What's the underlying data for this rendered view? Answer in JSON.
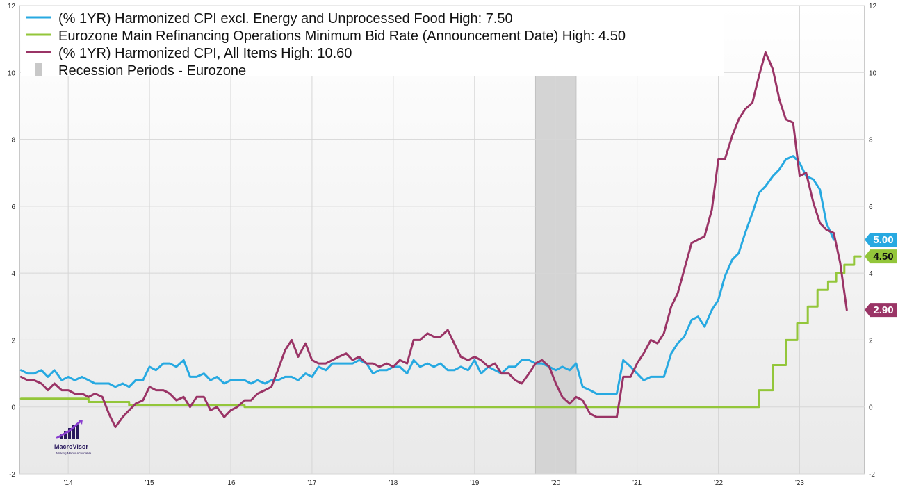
{
  "chart_data": {
    "type": "line",
    "title": "",
    "ylim": [
      -2,
      12
    ],
    "y_ticks": [
      -2,
      0,
      2,
      4,
      6,
      8,
      10,
      12
    ],
    "x_range": [
      2013.4,
      2023.8
    ],
    "x_ticks": [
      {
        "label": "'14",
        "x": 2014.0
      },
      {
        "label": "'15",
        "x": 2015.0
      },
      {
        "label": "'16",
        "x": 2016.0
      },
      {
        "label": "'17",
        "x": 2017.0
      },
      {
        "label": "'18",
        "x": 2018.0
      },
      {
        "label": "'19",
        "x": 2019.0
      },
      {
        "label": "'20",
        "x": 2020.0
      },
      {
        "label": "'21",
        "x": 2021.0
      },
      {
        "label": "'22",
        "x": 2022.0
      },
      {
        "label": "'23",
        "x": 2023.0
      }
    ],
    "recession_periods": [
      {
        "start": 2019.75,
        "end": 2020.25
      }
    ],
    "legend": [
      {
        "text": "(% 1YR) Harmonized CPI excl. Energy and Unprocessed Food   High: 7.50",
        "type": "line",
        "color": "#27a9e1"
      },
      {
        "text": "Eurozone Main Refinancing Operations Minimum Bid Rate (Announcement Date)   High: 4.50",
        "type": "line",
        "color": "#93c63a"
      },
      {
        "text": "(% 1YR) Harmonized CPI, All Items   High: 10.60",
        "type": "line",
        "color": "#9a3466"
      },
      {
        "text": "Recession Periods - Eurozone",
        "type": "box",
        "color": "#c8c8c8"
      }
    ],
    "series": [
      {
        "name": "(% 1YR) Harmonized CPI excl. Energy and Unprocessed Food",
        "color": "#27a9e1",
        "end_label": "5.00",
        "step": false,
        "points": [
          [
            2013.42,
            1.1
          ],
          [
            2013.5,
            1.0
          ],
          [
            2013.58,
            1.0
          ],
          [
            2013.67,
            1.1
          ],
          [
            2013.75,
            0.9
          ],
          [
            2013.83,
            1.1
          ],
          [
            2013.92,
            0.8
          ],
          [
            2014.0,
            0.9
          ],
          [
            2014.08,
            0.8
          ],
          [
            2014.17,
            0.9
          ],
          [
            2014.25,
            0.8
          ],
          [
            2014.33,
            0.7
          ],
          [
            2014.42,
            0.7
          ],
          [
            2014.5,
            0.7
          ],
          [
            2014.58,
            0.6
          ],
          [
            2014.67,
            0.7
          ],
          [
            2014.75,
            0.6
          ],
          [
            2014.83,
            0.8
          ],
          [
            2014.92,
            0.8
          ],
          [
            2015.0,
            1.2
          ],
          [
            2015.08,
            1.1
          ],
          [
            2015.17,
            1.3
          ],
          [
            2015.25,
            1.3
          ],
          [
            2015.33,
            1.2
          ],
          [
            2015.42,
            1.4
          ],
          [
            2015.5,
            0.9
          ],
          [
            2015.58,
            0.9
          ],
          [
            2015.67,
            1.0
          ],
          [
            2015.75,
            0.8
          ],
          [
            2015.83,
            0.9
          ],
          [
            2015.92,
            0.7
          ],
          [
            2016.0,
            0.8
          ],
          [
            2016.08,
            0.8
          ],
          [
            2016.17,
            0.8
          ],
          [
            2016.25,
            0.7
          ],
          [
            2016.33,
            0.8
          ],
          [
            2016.42,
            0.7
          ],
          [
            2016.5,
            0.8
          ],
          [
            2016.58,
            0.8
          ],
          [
            2016.67,
            0.9
          ],
          [
            2016.75,
            0.9
          ],
          [
            2016.83,
            0.8
          ],
          [
            2016.92,
            1.0
          ],
          [
            2017.0,
            0.9
          ],
          [
            2017.08,
            1.2
          ],
          [
            2017.17,
            1.1
          ],
          [
            2017.25,
            1.3
          ],
          [
            2017.33,
            1.3
          ],
          [
            2017.42,
            1.3
          ],
          [
            2017.5,
            1.3
          ],
          [
            2017.58,
            1.4
          ],
          [
            2017.67,
            1.3
          ],
          [
            2017.75,
            1.0
          ],
          [
            2017.83,
            1.1
          ],
          [
            2017.92,
            1.1
          ],
          [
            2018.0,
            1.2
          ],
          [
            2018.08,
            1.2
          ],
          [
            2018.17,
            1.0
          ],
          [
            2018.25,
            1.4
          ],
          [
            2018.33,
            1.2
          ],
          [
            2018.42,
            1.3
          ],
          [
            2018.5,
            1.2
          ],
          [
            2018.58,
            1.3
          ],
          [
            2018.67,
            1.1
          ],
          [
            2018.75,
            1.1
          ],
          [
            2018.83,
            1.2
          ],
          [
            2018.92,
            1.1
          ],
          [
            2019.0,
            1.4
          ],
          [
            2019.08,
            1.0
          ],
          [
            2019.17,
            1.2
          ],
          [
            2019.25,
            1.1
          ],
          [
            2019.33,
            1.0
          ],
          [
            2019.42,
            1.2
          ],
          [
            2019.5,
            1.2
          ],
          [
            2019.58,
            1.4
          ],
          [
            2019.67,
            1.4
          ],
          [
            2019.75,
            1.3
          ],
          [
            2019.83,
            1.3
          ],
          [
            2019.92,
            1.2
          ],
          [
            2020.0,
            1.1
          ],
          [
            2020.08,
            1.2
          ],
          [
            2020.17,
            1.1
          ],
          [
            2020.25,
            1.3
          ],
          [
            2020.33,
            0.6
          ],
          [
            2020.42,
            0.5
          ],
          [
            2020.5,
            0.4
          ],
          [
            2020.58,
            0.4
          ],
          [
            2020.67,
            0.4
          ],
          [
            2020.75,
            0.4
          ],
          [
            2020.83,
            1.4
          ],
          [
            2020.92,
            1.2
          ],
          [
            2021.0,
            1.0
          ],
          [
            2021.08,
            0.8
          ],
          [
            2021.17,
            0.9
          ],
          [
            2021.25,
            0.9
          ],
          [
            2021.33,
            0.9
          ],
          [
            2021.42,
            1.6
          ],
          [
            2021.5,
            1.9
          ],
          [
            2021.58,
            2.1
          ],
          [
            2021.67,
            2.6
          ],
          [
            2021.75,
            2.7
          ],
          [
            2021.83,
            2.4
          ],
          [
            2021.92,
            2.9
          ],
          [
            2022.0,
            3.2
          ],
          [
            2022.08,
            3.9
          ],
          [
            2022.17,
            4.4
          ],
          [
            2022.25,
            4.6
          ],
          [
            2022.33,
            5.2
          ],
          [
            2022.42,
            5.8
          ],
          [
            2022.5,
            6.4
          ],
          [
            2022.58,
            6.6
          ],
          [
            2022.67,
            6.9
          ],
          [
            2022.75,
            7.1
          ],
          [
            2022.83,
            7.4
          ],
          [
            2022.92,
            7.5
          ],
          [
            2023.0,
            7.3
          ],
          [
            2023.08,
            6.9
          ],
          [
            2023.17,
            6.8
          ],
          [
            2023.25,
            6.5
          ],
          [
            2023.33,
            5.5
          ],
          [
            2023.42,
            5.0
          ]
        ]
      },
      {
        "name": "Eurozone Main Refinancing Operations Minimum Bid Rate (Announcement Date)",
        "color": "#93c63a",
        "end_label": "4.50",
        "step": true,
        "points": [
          [
            2013.42,
            0.25
          ],
          [
            2013.92,
            0.25
          ],
          [
            2014.25,
            0.15
          ],
          [
            2014.75,
            0.05
          ],
          [
            2016.17,
            0.0
          ],
          [
            2022.5,
            0.5
          ],
          [
            2022.67,
            1.25
          ],
          [
            2022.83,
            2.0
          ],
          [
            2022.97,
            2.5
          ],
          [
            2023.1,
            3.0
          ],
          [
            2023.22,
            3.5
          ],
          [
            2023.35,
            3.75
          ],
          [
            2023.45,
            4.0
          ],
          [
            2023.55,
            4.25
          ],
          [
            2023.67,
            4.5
          ],
          [
            2023.75,
            4.5
          ]
        ]
      },
      {
        "name": "(% 1YR) Harmonized CPI, All Items",
        "color": "#9a3466",
        "end_label": "2.90",
        "step": false,
        "points": [
          [
            2013.42,
            0.9
          ],
          [
            2013.5,
            0.8
          ],
          [
            2013.58,
            0.8
          ],
          [
            2013.67,
            0.7
          ],
          [
            2013.75,
            0.5
          ],
          [
            2013.83,
            0.7
          ],
          [
            2013.92,
            0.5
          ],
          [
            2014.0,
            0.5
          ],
          [
            2014.08,
            0.4
          ],
          [
            2014.17,
            0.4
          ],
          [
            2014.25,
            0.3
          ],
          [
            2014.33,
            0.4
          ],
          [
            2014.42,
            0.3
          ],
          [
            2014.5,
            -0.2
          ],
          [
            2014.58,
            -0.6
          ],
          [
            2014.67,
            -0.3
          ],
          [
            2014.75,
            -0.1
          ],
          [
            2014.83,
            0.1
          ],
          [
            2014.92,
            0.2
          ],
          [
            2015.0,
            0.6
          ],
          [
            2015.08,
            0.5
          ],
          [
            2015.17,
            0.5
          ],
          [
            2015.25,
            0.4
          ],
          [
            2015.33,
            0.2
          ],
          [
            2015.42,
            0.3
          ],
          [
            2015.5,
            0.0
          ],
          [
            2015.58,
            0.3
          ],
          [
            2015.67,
            0.3
          ],
          [
            2015.75,
            -0.1
          ],
          [
            2015.83,
            0.0
          ],
          [
            2015.92,
            -0.3
          ],
          [
            2016.0,
            -0.1
          ],
          [
            2016.08,
            0.0
          ],
          [
            2016.17,
            0.2
          ],
          [
            2016.25,
            0.2
          ],
          [
            2016.33,
            0.4
          ],
          [
            2016.42,
            0.5
          ],
          [
            2016.5,
            0.6
          ],
          [
            2016.58,
            1.1
          ],
          [
            2016.67,
            1.7
          ],
          [
            2016.75,
            2.0
          ],
          [
            2016.83,
            1.5
          ],
          [
            2016.92,
            1.9
          ],
          [
            2017.0,
            1.4
          ],
          [
            2017.08,
            1.3
          ],
          [
            2017.17,
            1.3
          ],
          [
            2017.25,
            1.4
          ],
          [
            2017.33,
            1.5
          ],
          [
            2017.42,
            1.6
          ],
          [
            2017.5,
            1.4
          ],
          [
            2017.58,
            1.5
          ],
          [
            2017.67,
            1.3
          ],
          [
            2017.75,
            1.3
          ],
          [
            2017.83,
            1.2
          ],
          [
            2017.92,
            1.3
          ],
          [
            2018.0,
            1.2
          ],
          [
            2018.08,
            1.4
          ],
          [
            2018.17,
            1.3
          ],
          [
            2018.25,
            2.0
          ],
          [
            2018.33,
            2.0
          ],
          [
            2018.42,
            2.2
          ],
          [
            2018.5,
            2.1
          ],
          [
            2018.58,
            2.1
          ],
          [
            2018.67,
            2.3
          ],
          [
            2018.75,
            1.9
          ],
          [
            2018.83,
            1.5
          ],
          [
            2018.92,
            1.4
          ],
          [
            2019.0,
            1.5
          ],
          [
            2019.08,
            1.4
          ],
          [
            2019.17,
            1.2
          ],
          [
            2019.25,
            1.3
          ],
          [
            2019.33,
            1.0
          ],
          [
            2019.42,
            1.0
          ],
          [
            2019.5,
            0.8
          ],
          [
            2019.58,
            0.7
          ],
          [
            2019.67,
            1.0
          ],
          [
            2019.75,
            1.3
          ],
          [
            2019.83,
            1.4
          ],
          [
            2019.92,
            1.2
          ],
          [
            2020.0,
            0.7
          ],
          [
            2020.08,
            0.3
          ],
          [
            2020.17,
            0.1
          ],
          [
            2020.25,
            0.3
          ],
          [
            2020.33,
            0.2
          ],
          [
            2020.42,
            -0.2
          ],
          [
            2020.5,
            -0.3
          ],
          [
            2020.58,
            -0.3
          ],
          [
            2020.67,
            -0.3
          ],
          [
            2020.75,
            -0.3
          ],
          [
            2020.83,
            0.9
          ],
          [
            2020.92,
            0.9
          ],
          [
            2021.0,
            1.3
          ],
          [
            2021.08,
            1.6
          ],
          [
            2021.17,
            2.0
          ],
          [
            2021.25,
            1.9
          ],
          [
            2021.33,
            2.2
          ],
          [
            2021.42,
            3.0
          ],
          [
            2021.5,
            3.4
          ],
          [
            2021.58,
            4.1
          ],
          [
            2021.67,
            4.9
          ],
          [
            2021.75,
            5.0
          ],
          [
            2021.83,
            5.1
          ],
          [
            2021.92,
            5.9
          ],
          [
            2022.0,
            7.4
          ],
          [
            2022.08,
            7.4
          ],
          [
            2022.17,
            8.1
          ],
          [
            2022.25,
            8.6
          ],
          [
            2022.33,
            8.9
          ],
          [
            2022.42,
            9.1
          ],
          [
            2022.5,
            9.9
          ],
          [
            2022.58,
            10.6
          ],
          [
            2022.67,
            10.1
          ],
          [
            2022.75,
            9.2
          ],
          [
            2022.83,
            8.6
          ],
          [
            2022.92,
            8.5
          ],
          [
            2023.0,
            6.9
          ],
          [
            2023.08,
            7.0
          ],
          [
            2023.17,
            6.1
          ],
          [
            2023.25,
            5.5
          ],
          [
            2023.33,
            5.3
          ],
          [
            2023.42,
            5.2
          ],
          [
            2023.5,
            4.3
          ],
          [
            2023.58,
            2.9
          ]
        ]
      }
    ]
  },
  "logo": {
    "name": "MacroVisor",
    "tagline": "Making Macro Actionable"
  }
}
